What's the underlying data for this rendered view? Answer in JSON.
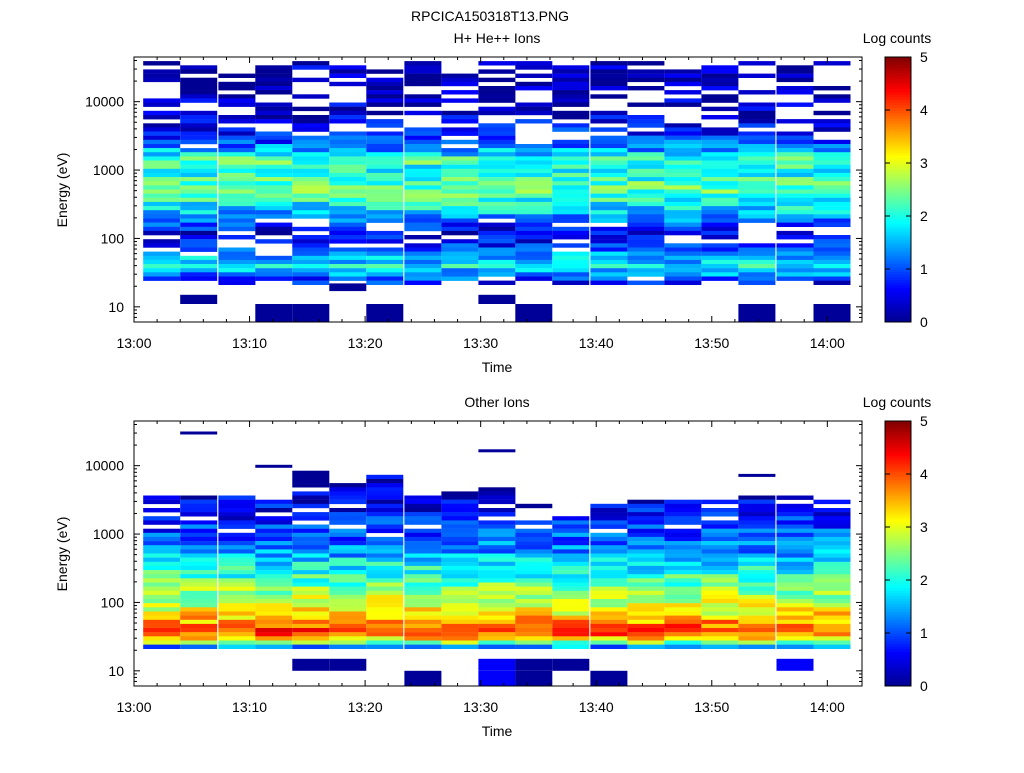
{
  "figure_title": "RPCICA150318T13.PNG",
  "colormap": [
    "#00008f",
    "#0000ff",
    "#0080ff",
    "#00ffff",
    "#80ff80",
    "#ffff00",
    "#ff8000",
    "#ff0000",
    "#800000"
  ],
  "chart_data": [
    {
      "type": "heatmap",
      "title": "H+ He++ Ions",
      "xlabel": "Time",
      "ylabel": "Energy (eV)",
      "colorbar_label": "Log counts",
      "colorbar_ticks": [
        "0",
        "1",
        "2",
        "3",
        "4",
        "5"
      ],
      "colorbar_range": [
        0,
        5
      ],
      "x_ticks": [
        "13:00",
        "13:10",
        "13:20",
        "13:30",
        "13:40",
        "13:50",
        "14:00"
      ],
      "y_ticks": [
        "10",
        "100",
        "1000",
        "10000"
      ],
      "y_scale": "log",
      "y_range": [
        6,
        45000
      ],
      "x_range_minutes": [
        0,
        63
      ],
      "time_bins_start_minutes": [
        0.8,
        4.0,
        7.3,
        10.5,
        13.7,
        16.9,
        20.1,
        23.4,
        26.6,
        29.8,
        33.0,
        36.2,
        39.5,
        42.7,
        45.9,
        49.1,
        52.3,
        55.6,
        58.8
      ],
      "time_bin_width_minutes": 3.2,
      "energy_profile": {
        "energies_eV": [
          10,
          13,
          20,
          30,
          38,
          45,
          55,
          70,
          90,
          120,
          200,
          260,
          350,
          500,
          700,
          1000,
          1400,
          1800,
          2500,
          4000,
          7000,
          12000,
          18000,
          25000,
          30000,
          40000
        ],
        "log_counts": [
          0.05,
          0.05,
          0.4,
          1.3,
          1.9,
          1.6,
          1.5,
          1.0,
          0.6,
          0.4,
          1.3,
          1.7,
          2.0,
          2.3,
          2.2,
          1.9,
          2.3,
          1.6,
          1.0,
          0.6,
          0.35,
          0.25,
          0.1,
          0.1,
          0.3,
          0.1
        ]
      },
      "emax_eV": [
        40000,
        40000,
        40000,
        40000,
        40000,
        40000,
        40000,
        40000,
        40000,
        40000,
        40000,
        40000,
        40000,
        40000,
        40000,
        40000,
        40000,
        40000,
        40000
      ],
      "emin_eV": [
        22,
        11,
        22,
        6,
        6,
        17,
        6,
        22,
        22,
        11,
        6,
        22,
        22,
        22,
        22,
        22,
        6,
        22,
        6
      ],
      "low_energy_blocks": [
        {
          "bin": 3,
          "energy_eV": [
            6,
            11
          ],
          "log_counts": 0.05
        },
        {
          "bin": 4,
          "energy_eV": [
            6,
            11
          ],
          "log_counts": 0.05
        },
        {
          "bin": 6,
          "energy_eV": [
            6,
            11
          ],
          "log_counts": 0.05
        },
        {
          "bin": 10,
          "energy_eV": [
            6,
            11
          ],
          "log_counts": 0.05
        },
        {
          "bin": 16,
          "energy_eV": [
            6,
            11
          ],
          "log_counts": 0.05
        },
        {
          "bin": 18,
          "energy_eV": [
            6,
            11
          ],
          "log_counts": 0.05
        },
        {
          "bin": 1,
          "energy_eV": [
            11,
            15
          ],
          "log_counts": 0.05
        },
        {
          "bin": 9,
          "energy_eV": [
            11,
            15
          ],
          "log_counts": 0.05
        },
        {
          "bin": 5,
          "energy_eV": [
            17,
            22
          ],
          "log_counts": 0.05
        }
      ]
    },
    {
      "type": "heatmap",
      "title": "Other Ions",
      "xlabel": "Time",
      "ylabel": "Energy (eV)",
      "colorbar_label": "Log counts",
      "colorbar_ticks": [
        "0",
        "1",
        "2",
        "3",
        "4",
        "5"
      ],
      "colorbar_range": [
        0,
        5
      ],
      "x_ticks": [
        "13:00",
        "13:10",
        "13:20",
        "13:30",
        "13:40",
        "13:50",
        "14:00"
      ],
      "y_ticks": [
        "10",
        "100",
        "1000",
        "10000"
      ],
      "y_scale": "log",
      "y_range": [
        6,
        45000
      ],
      "x_range_minutes": [
        0,
        63
      ],
      "time_bins_start_minutes": [
        0.8,
        4.0,
        7.3,
        10.5,
        13.7,
        16.9,
        20.1,
        23.4,
        26.6,
        29.8,
        33.0,
        36.2,
        39.5,
        42.7,
        45.9,
        49.1,
        52.3,
        55.6,
        58.8
      ],
      "time_bin_width_minutes": 3.2,
      "energy_profile": {
        "energies_eV": [
          22,
          25,
          28,
          32,
          36,
          42,
          50,
          60,
          75,
          90,
          110,
          140,
          180,
          220,
          280,
          380,
          500,
          700,
          1000,
          1400,
          2000,
          3000,
          4500
        ],
        "log_counts": [
          1.2,
          2.2,
          3.0,
          3.7,
          4.1,
          4.0,
          3.6,
          3.4,
          3.1,
          2.9,
          2.8,
          2.6,
          2.4,
          2.2,
          2.0,
          1.8,
          1.5,
          1.2,
          1.0,
          0.8,
          0.6,
          0.45,
          0.3
        ]
      },
      "emax_eV": [
        3600,
        3600,
        4300,
        4600,
        8200,
        5500,
        7000,
        3600,
        4600,
        5100,
        3000,
        1800,
        2900,
        3200,
        3400,
        3400,
        3600,
        3600,
        3400
      ],
      "emin_eV": [
        22,
        22,
        22,
        18,
        14,
        14,
        22,
        6,
        6,
        14,
        6,
        14,
        6,
        22,
        22,
        22,
        22,
        12,
        22
      ],
      "sparse_high": [
        {
          "bin": 1,
          "energy_eV": 30000
        },
        {
          "bin": 3,
          "energy_eV": 9800
        },
        {
          "bin": 9,
          "energy_eV": 16500
        },
        {
          "bin": 16,
          "energy_eV": 7200
        }
      ],
      "low_energy_blocks": [
        {
          "bin": 7,
          "energy_eV": [
            6,
            10
          ],
          "log_counts": 0.05
        },
        {
          "bin": 9,
          "energy_eV": [
            6,
            10
          ],
          "log_counts": 0.6
        },
        {
          "bin": 10,
          "energy_eV": [
            6,
            10
          ],
          "log_counts": 0.05
        },
        {
          "bin": 12,
          "energy_eV": [
            6,
            10
          ],
          "log_counts": 0.05
        },
        {
          "bin": 9,
          "energy_eV": [
            10,
            15
          ],
          "log_counts": 0.6
        },
        {
          "bin": 10,
          "energy_eV": [
            10,
            15
          ],
          "log_counts": 0.05
        },
        {
          "bin": 11,
          "energy_eV": [
            10,
            15
          ],
          "log_counts": 0.05
        },
        {
          "bin": 4,
          "energy_eV": [
            10,
            15
          ],
          "log_counts": 0.05
        },
        {
          "bin": 5,
          "energy_eV": [
            10,
            15
          ],
          "log_counts": 0.05
        },
        {
          "bin": 17,
          "energy_eV": [
            10,
            15
          ],
          "log_counts": 0.6
        }
      ]
    }
  ]
}
